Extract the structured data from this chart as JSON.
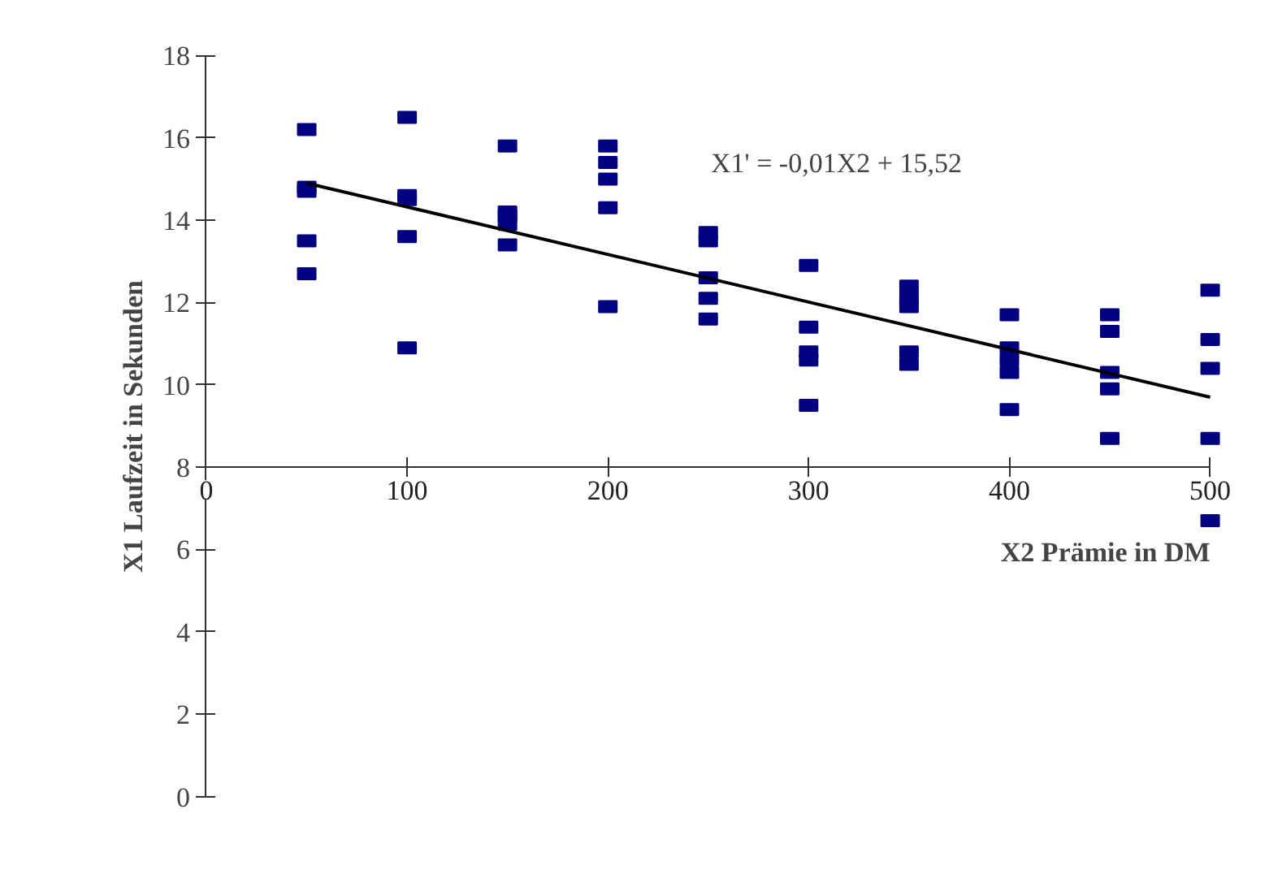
{
  "chart_data": {
    "type": "scatter",
    "xlabel": "X2 Prämie in DM",
    "ylabel": "X1 Laufzeit in Sekunden",
    "xlim": [
      0,
      500
    ],
    "ylim": [
      0,
      18
    ],
    "xticks": [
      0,
      100,
      200,
      300,
      400,
      500
    ],
    "yticks": [
      0,
      2,
      4,
      6,
      8,
      10,
      12,
      14,
      16,
      18
    ],
    "grid": false,
    "marker": "square",
    "annotations": [
      "X1' = -0,01X2 + 15,52"
    ],
    "series": [
      {
        "color": "#000080",
        "x": [
          50,
          50,
          50,
          50,
          50,
          100,
          100,
          100,
          100,
          100,
          150,
          150,
          150,
          150,
          150,
          200,
          200,
          200,
          200,
          200,
          250,
          250,
          250,
          250,
          250,
          300,
          300,
          300,
          300,
          300,
          350,
          350,
          350,
          350,
          350,
          400,
          400,
          400,
          400,
          400,
          450,
          450,
          450,
          450,
          450,
          500,
          500,
          500,
          500,
          500
        ],
        "values": [
          16.2,
          14.8,
          14.7,
          13.5,
          12.7,
          16.5,
          14.6,
          14.5,
          13.6,
          10.9,
          15.8,
          14.2,
          14.1,
          13.9,
          13.4,
          15.8,
          15.4,
          15.0,
          14.3,
          11.9,
          13.7,
          13.5,
          12.6,
          12.1,
          11.6,
          12.9,
          11.4,
          10.8,
          10.6,
          9.5,
          12.4,
          12.1,
          11.9,
          10.8,
          10.5,
          11.7,
          10.9,
          10.6,
          10.3,
          9.4,
          11.7,
          11.3,
          10.3,
          9.9,
          8.7,
          12.3,
          11.1,
          10.4,
          8.7,
          6.7
        ]
      },
      {
        "type": "line",
        "color": "#000000",
        "x": [
          50,
          500
        ],
        "values": [
          14.9,
          9.7
        ],
        "marker": "none"
      }
    ]
  }
}
